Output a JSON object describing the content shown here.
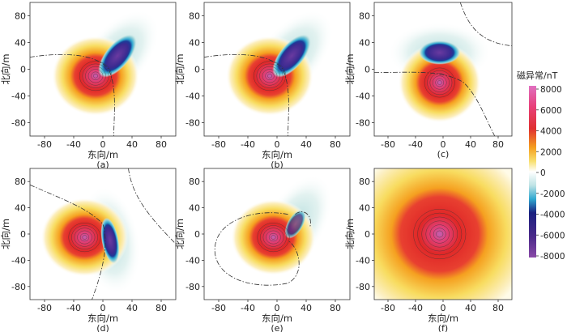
{
  "chart_data": [
    {
      "type": "heatmap",
      "panel_label": "(a)",
      "xlabel": "东向/m",
      "ylabel": "北向/m",
      "xticks": [
        -80,
        -40,
        0,
        40,
        80
      ],
      "yticks": [
        80,
        40,
        0,
        -40,
        -80
      ],
      "xlim": [
        -100,
        100
      ],
      "ylim": [
        -100,
        100
      ],
      "field": {
        "pos_center": [
          -10,
          -10
        ],
        "neg_center": [
          20,
          20
        ],
        "neg_shape": "ellipse",
        "neg_angle_deg": -50
      }
    },
    {
      "type": "heatmap",
      "panel_label": "(b)",
      "xlabel": "东向/m",
      "ylabel": "北向/m",
      "xticks": [
        -80,
        -40,
        0,
        40,
        80
      ],
      "yticks": [
        80,
        40,
        0,
        -40,
        -80
      ],
      "xlim": [
        -100,
        100
      ],
      "ylim": [
        -100,
        100
      ],
      "field": {
        "pos_center": [
          -10,
          -10
        ],
        "neg_center": [
          20,
          20
        ],
        "neg_shape": "ellipse",
        "neg_angle_deg": -50
      }
    },
    {
      "type": "heatmap",
      "panel_label": "(c)",
      "xlabel": "",
      "ylabel": "北向/m",
      "xticks": [
        -80,
        -40,
        0,
        40,
        80
      ],
      "yticks": [
        80,
        40,
        0,
        -40,
        -80
      ],
      "xlim": [
        -100,
        100
      ],
      "ylim": [
        -100,
        100
      ],
      "field": {
        "pos_center": [
          -5,
          -20
        ],
        "neg_center": [
          -5,
          25
        ],
        "neg_shape": "ellipse",
        "neg_angle_deg": 0
      }
    },
    {
      "type": "heatmap",
      "panel_label": "(d)",
      "xlabel": "东向/m",
      "ylabel": "北向/m",
      "xticks": [
        -80,
        -40,
        0,
        40,
        80
      ],
      "yticks": [
        80,
        40,
        0,
        -40,
        -80
      ],
      "xlim": [
        -100,
        100
      ],
      "ylim": [
        -100,
        100
      ],
      "field": {
        "pos_center": [
          -25,
          -5
        ],
        "neg_center": [
          10,
          -10
        ],
        "neg_shape": "ellipse",
        "neg_angle_deg": 80
      }
    },
    {
      "type": "heatmap",
      "panel_label": "(e)",
      "xlabel": "东向/m",
      "ylabel": "北向/m",
      "xticks": [
        -80,
        -40,
        0,
        40,
        80
      ],
      "yticks": [
        80,
        40,
        0,
        -40,
        -80
      ],
      "xlim": [
        -100,
        100
      ],
      "ylim": [
        -100,
        100
      ],
      "field": {
        "pos_center": [
          -5,
          -5
        ],
        "neg_center": [
          25,
          15
        ],
        "neg_shape": "ellipse",
        "neg_angle_deg": -60
      }
    },
    {
      "type": "heatmap",
      "panel_label": "(f)",
      "xlabel": "东向/m",
      "ylabel": "北向/m",
      "xticks": [
        -80,
        -40,
        0,
        40,
        80
      ],
      "yticks": [
        80,
        40,
        0,
        -40,
        -80
      ],
      "xlim": [
        -100,
        100
      ],
      "ylim": [
        -100,
        100
      ],
      "field": {
        "pos_center": [
          -5,
          0
        ],
        "neg_center": null,
        "neg_shape": "none",
        "neg_angle_deg": 0
      }
    }
  ],
  "colorbar": {
    "title": "磁异常/nT",
    "ticks": [
      "8000",
      "6000",
      "4000",
      "2000",
      "0",
      "-2000",
      "-4000",
      "-6000",
      "-8000"
    ],
    "range": [
      -8000,
      8000
    ]
  },
  "colors": {
    "positive_peak": "#b0308a",
    "positive_mid": "#e03030",
    "zero": "#ffffff",
    "neg_mid": "#2aa0c8",
    "negative_peak": "#4b2a8a"
  }
}
